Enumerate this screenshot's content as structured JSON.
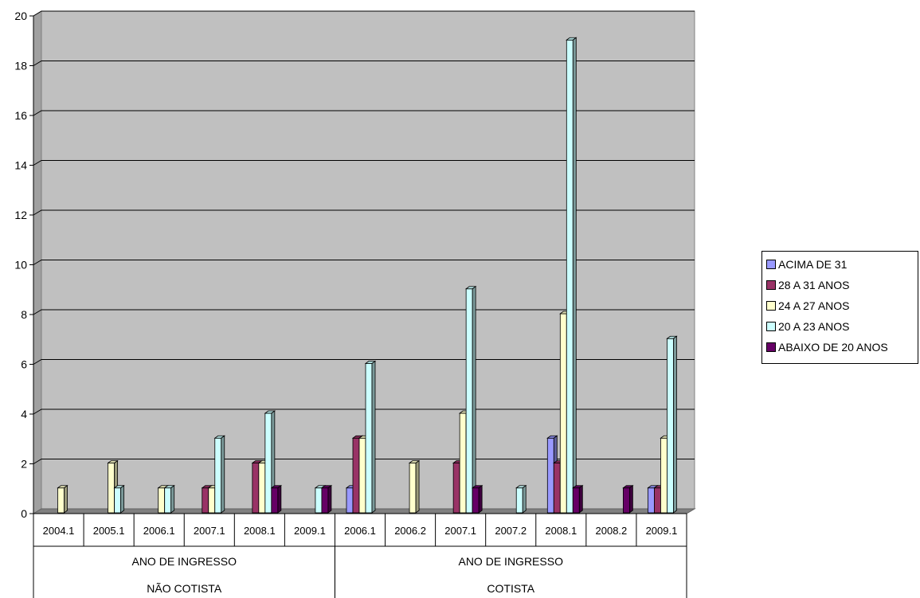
{
  "chart_data": {
    "type": "bar",
    "ylim": [
      0,
      20
    ],
    "yticks": [
      "0",
      "2",
      "4",
      "6",
      "8",
      "10",
      "12",
      "14",
      "16",
      "18",
      "20"
    ],
    "grid": true,
    "legend_position": "right",
    "categories": [
      "2004.1",
      "2005.1",
      "2006.1",
      "2007.1",
      "2008.1",
      "2009.1",
      "2006.1",
      "2006.2",
      "2007.1",
      "2007.2",
      "2008.1",
      "2008.2",
      "2009.1"
    ],
    "groups": [
      {
        "label_line1": "ANO DE INGRESSO",
        "label_line2": "NÃO  COTISTA",
        "categories_count": 6
      },
      {
        "label_line1": "ANO DE INGRESSO",
        "label_line2": "COTISTA",
        "categories_count": 7
      }
    ],
    "series": [
      {
        "name": "ACIMA DE 31",
        "color": "#9999ff",
        "values": [
          0,
          0,
          0,
          0,
          0,
          0,
          1,
          0,
          0,
          0,
          3,
          0,
          1
        ]
      },
      {
        "name": "28 A 31 ANOS",
        "color": "#993366",
        "values": [
          0,
          0,
          0,
          1,
          2,
          0,
          3,
          0,
          2,
          0,
          2,
          0,
          1
        ]
      },
      {
        "name": "24 A 27 ANOS",
        "color": "#ffffcc",
        "values": [
          1,
          2,
          1,
          1,
          2,
          0,
          3,
          2,
          4,
          0,
          8,
          0,
          3
        ]
      },
      {
        "name": "20 A 23 ANOS",
        "color": "#ccffff",
        "values": [
          0,
          1,
          1,
          3,
          4,
          1,
          6,
          0,
          9,
          1,
          19,
          0,
          7
        ]
      },
      {
        "name": "ABAIXO DE 20 ANOS",
        "color": "#660066",
        "values": [
          0,
          0,
          0,
          0,
          1,
          1,
          0,
          0,
          1,
          0,
          1,
          1,
          0
        ]
      }
    ]
  }
}
